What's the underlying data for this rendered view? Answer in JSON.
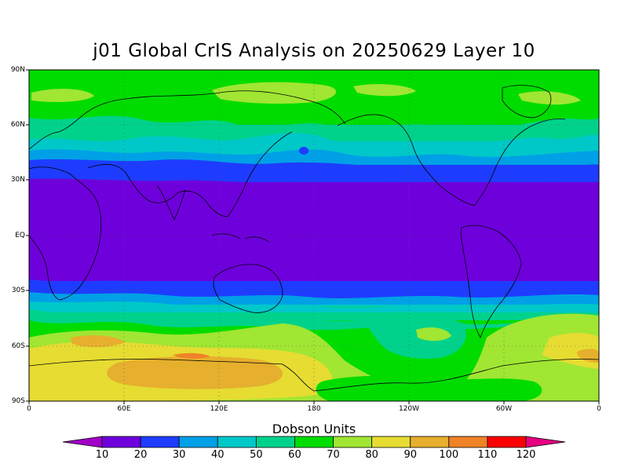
{
  "map": {
    "title": "j01 Global CrIS Analysis on 20250629 Layer 10",
    "lat_labels": [
      "90N",
      "60N",
      "30N",
      "EQ",
      "30S",
      "60S",
      "90S"
    ],
    "lon_labels": [
      "0",
      "60E",
      "120E",
      "180",
      "120W",
      "60W",
      "0"
    ],
    "colorbar": {
      "title": "Dobson Units",
      "labels": [
        "10",
        "20",
        "30",
        "40",
        "50",
        "60",
        "70",
        "80",
        "90",
        "100",
        "110",
        "120"
      ],
      "colors": [
        "#a000c8",
        "#6e00dc",
        "#1e3cff",
        "#00a0e6",
        "#00c8c8",
        "#00d28c",
        "#00dc00",
        "#a0e632",
        "#e6dc32",
        "#e6af2d",
        "#f08228",
        "#fa0000",
        "#e60082"
      ]
    }
  }
}
